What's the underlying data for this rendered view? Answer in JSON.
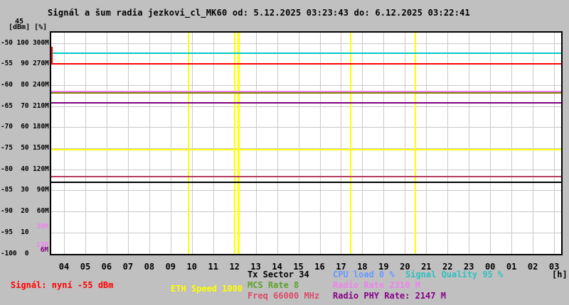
{
  "title": "Signál a šum radia jezkovi_cl_MK60 od: 5.12.2025 03:23:43 do: 6.12.2025 03:22:41",
  "axis_left": {
    "corner_top": "45",
    "units": "[dBm] [%]",
    "rows": [
      "-50 100 300M",
      "-55  90 270M",
      "-60  80 240M",
      "-65  70 210M",
      "-70  60 180M",
      "-75  50 150M",
      "-80  40 120M",
      "-85  30  90M",
      "-90  20  60M",
      "-95  10",
      "-100  0"
    ],
    "markers": [
      {
        "text": "39M",
        "color": "#EE82EE",
        "scale": "rate",
        "value": 39
      },
      {
        "text": "13M",
        "color": "#EE82EE",
        "scale": "rate",
        "value": 13
      },
      {
        "text": "6M",
        "color": "#880088",
        "scale": "rate",
        "value": 6
      }
    ]
  },
  "axis_bottom": {
    "hours": [
      "04",
      "05",
      "06",
      "07",
      "08",
      "09",
      "10",
      "11",
      "12",
      "13",
      "14",
      "15",
      "16",
      "17",
      "18",
      "19",
      "20",
      "21",
      "22",
      "23",
      "00",
      "01",
      "02",
      "03"
    ],
    "unit": "[h]"
  },
  "legend": {
    "row1": [
      {
        "text": "Tx Sector 34",
        "color": "#000000"
      },
      {
        "text": "CPU load 0 %",
        "color": "#6699FF"
      },
      {
        "text": "Signal Quality 95 %",
        "color": "#2FBFBF"
      }
    ],
    "row2": [
      {
        "text": "Signál: nyní -55 dBm",
        "color": "#FF0000"
      },
      {
        "text": "ETH Speed 1000",
        "color": "#FFFF00"
      },
      {
        "text": "MCS Rate 8",
        "color": "#5FA028"
      },
      {
        "text": "Radio Rate 2310 M",
        "color": "#EE82EE"
      }
    ],
    "row3": [
      {
        "text": "Freq 66000 MHz",
        "color": "#DC4A6A"
      },
      {
        "text": "Radio PHY Rate: 2147 M",
        "color": "#880088"
      }
    ]
  },
  "chart_data": {
    "type": "line",
    "title": "Signál a šum radia jezkovi_cl_MK60 od: 5.12.2025 03:23:43 do: 6.12.2025 03:22:41",
    "x_axis": {
      "label": "[h]",
      "ticks": [
        "04",
        "05",
        "06",
        "07",
        "08",
        "09",
        "10",
        "11",
        "12",
        "13",
        "14",
        "15",
        "16",
        "17",
        "18",
        "19",
        "20",
        "21",
        "22",
        "23",
        "00",
        "01",
        "02",
        "03"
      ]
    },
    "y_axes": {
      "dbm": {
        "range": [
          -100,
          -50
        ],
        "ticks": [
          -50,
          -55,
          -60,
          -65,
          -70,
          -75,
          -80,
          -85,
          -90,
          -95,
          -100
        ]
      },
      "pct": {
        "range": [
          0,
          100
        ],
        "ticks": [
          100,
          90,
          80,
          70,
          60,
          50,
          40,
          30,
          20,
          10,
          0
        ]
      },
      "rate": {
        "range": [
          0,
          300
        ],
        "ticks_label": [
          "300M",
          "270M",
          "240M",
          "210M",
          "180M",
          "150M",
          "120M",
          "90M",
          "60M"
        ]
      },
      "rate10": {
        "range": [
          0,
          3000
        ]
      }
    },
    "grid": true,
    "lines": [
      {
        "name": "signal-quality",
        "legend": "Signal Quality 95 %",
        "scale": "pct",
        "value": 95,
        "color": "#00C8C8"
      },
      {
        "name": "signal",
        "legend": "Signál: nyní -55 dBm",
        "scale": "dbm",
        "value": -55,
        "color": "#FF0000",
        "start_value": -51
      },
      {
        "name": "radio-rate",
        "legend": "Radio Rate 2310 M",
        "scale": "rate10",
        "value": 2310,
        "color": "#EE82EE"
      },
      {
        "name": "mcs-rate",
        "legend": "MCS Rate 8",
        "scale": "rate10",
        "value": 2290,
        "color": "#808000"
      },
      {
        "name": "radio-phy-rate",
        "legend": "Radio PHY Rate: 2147 M",
        "scale": "rate10",
        "value": 2147,
        "color": "#800080"
      },
      {
        "name": "eth-speed",
        "legend": "ETH Speed 1000",
        "scale": "rate10",
        "value": 1480,
        "color": "#FFFF00"
      },
      {
        "name": "freq",
        "legend": "Freq 66000 MHz",
        "scale": "rate10",
        "value": 1100,
        "color": "#B43A5E"
      },
      {
        "name": "tx-sector",
        "legend": "Tx Sector 34",
        "scale": "pct",
        "value": 34,
        "color": "#000000"
      }
    ],
    "legend_only": [
      {
        "legend": "CPU load 0 %",
        "scale": "pct",
        "value": 0,
        "color": "#6699FF"
      }
    ],
    "event_lines": [
      {
        "frac": 0.268,
        "width": 2
      },
      {
        "frac": 0.359,
        "width": 2
      },
      {
        "frac": 0.366,
        "width": 3
      },
      {
        "frac": 0.586,
        "width": 2
      },
      {
        "frac": 0.712,
        "width": 2
      }
    ],
    "value_markers": [
      {
        "label": "39M",
        "value": 39,
        "color": "#EE82EE"
      },
      {
        "label": "13M",
        "value": 13,
        "color": "#EE82EE"
      },
      {
        "label": "6M",
        "value": 6,
        "color": "#880088"
      }
    ]
  }
}
